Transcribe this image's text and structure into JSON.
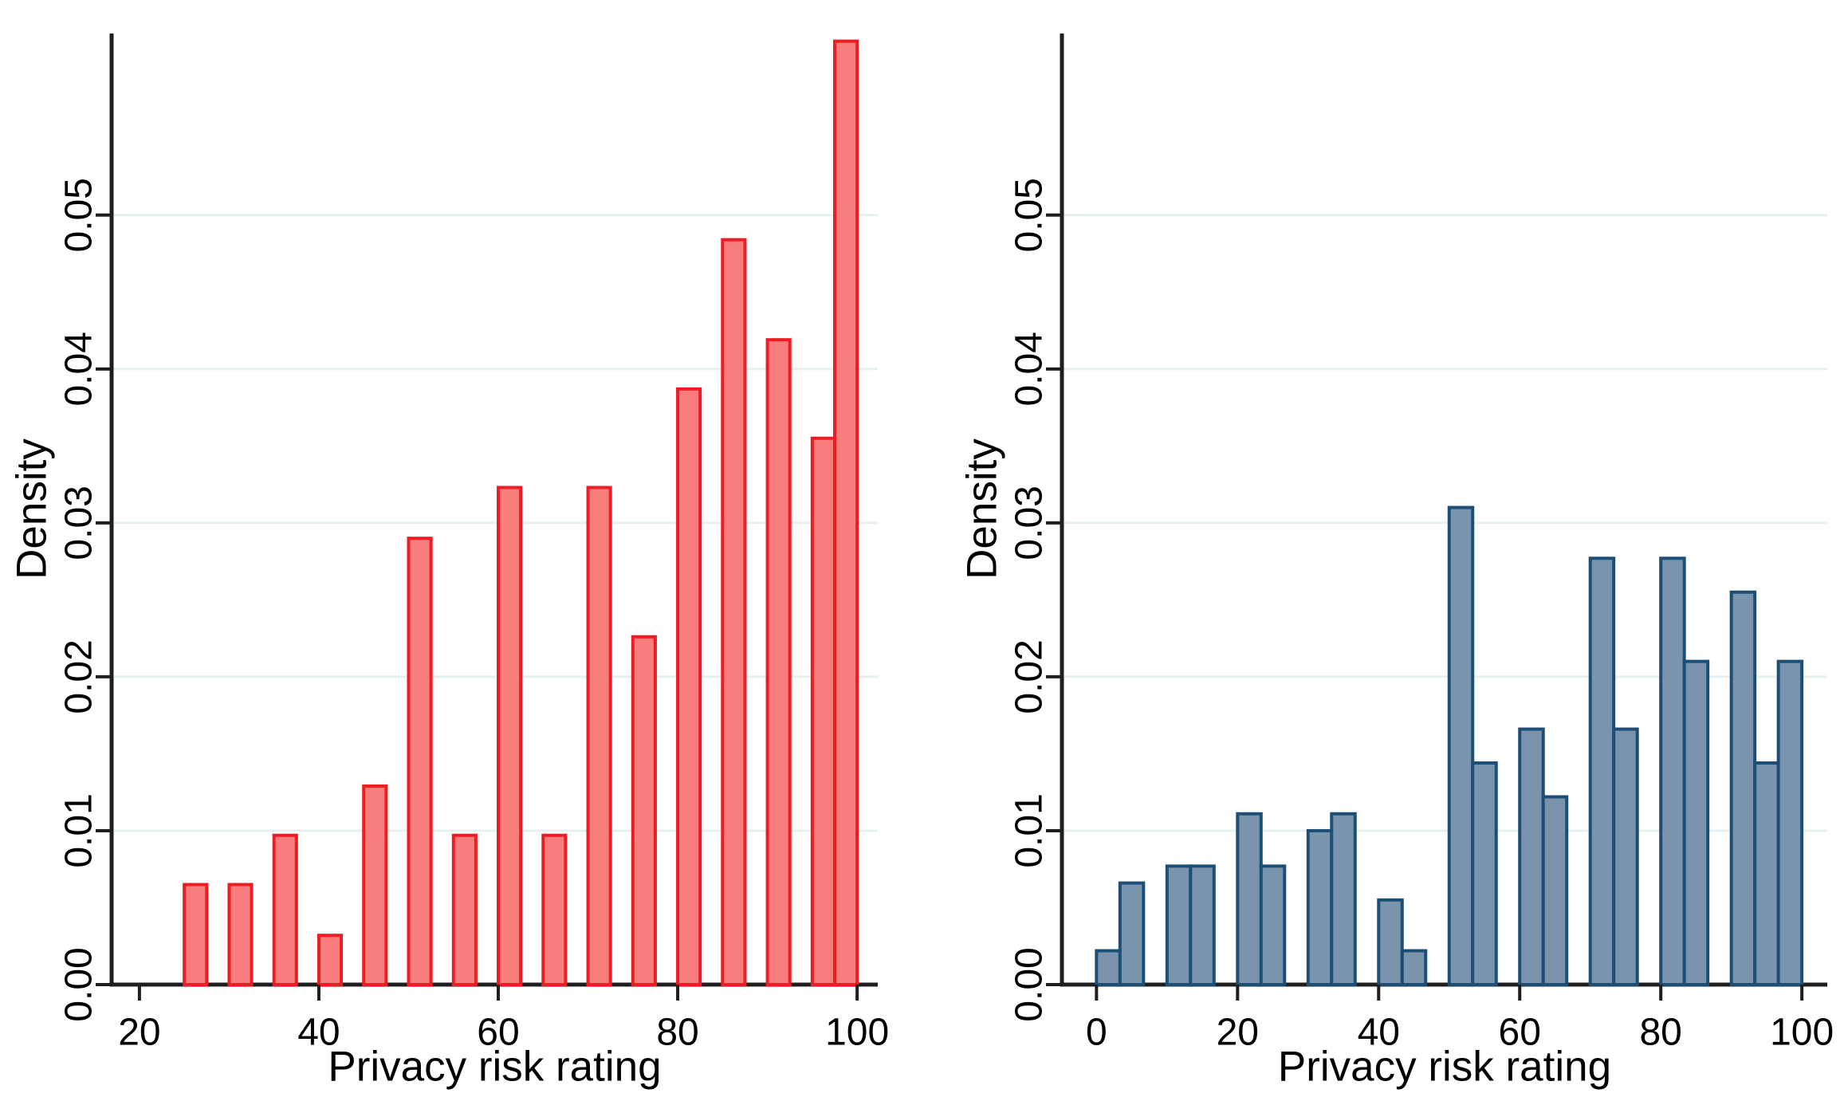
{
  "figure": {
    "background": "#ffffff",
    "description": "Two-panel histogram figure of privacy risk ratings"
  },
  "style": {
    "grid_color": "#e7f0f0",
    "axis_color": "#1e1e1e",
    "text_color": "#000000",
    "tick_font_size": 48,
    "title_font_size": 53
  },
  "chart_data": [
    {
      "type": "bar",
      "name": "red-histogram",
      "xlabel": "Privacy risk rating",
      "ylabel": "Density",
      "legend": "none",
      "grid": "horizontal",
      "bar_fill": "#f87d7d",
      "bar_stroke": "#ee1c23",
      "xlim": [
        16.9,
        102.3
      ],
      "ylim": [
        0,
        0.0618
      ],
      "bin_width": 2.5,
      "x_ticks": [
        {
          "v": 20,
          "label": "20"
        },
        {
          "v": 40,
          "label": "40"
        },
        {
          "v": 60,
          "label": "60"
        },
        {
          "v": 80,
          "label": "80"
        },
        {
          "v": 100,
          "label": "100"
        }
      ],
      "y_ticks": [
        {
          "v": 0.0,
          "label": "0.00"
        },
        {
          "v": 0.01,
          "label": "0.01"
        },
        {
          "v": 0.02,
          "label": "0.02"
        },
        {
          "v": 0.03,
          "label": "0.03"
        },
        {
          "v": 0.04,
          "label": "0.04"
        },
        {
          "v": 0.05,
          "label": "0.05"
        }
      ],
      "grid_values": [
        0.01,
        0.02,
        0.03,
        0.04,
        0.05
      ],
      "bars": [
        {
          "x0": 25,
          "density": 0.0065
        },
        {
          "x0": 30,
          "density": 0.0065
        },
        {
          "x0": 35,
          "density": 0.0097
        },
        {
          "x0": 40,
          "density": 0.0032
        },
        {
          "x0": 45,
          "density": 0.0129
        },
        {
          "x0": 50,
          "density": 0.029
        },
        {
          "x0": 55,
          "density": 0.0097
        },
        {
          "x0": 60,
          "density": 0.0323
        },
        {
          "x0": 65,
          "density": 0.0097
        },
        {
          "x0": 70,
          "density": 0.0323
        },
        {
          "x0": 75,
          "density": 0.0226
        },
        {
          "x0": 80,
          "density": 0.0387
        },
        {
          "x0": 85,
          "density": 0.0484
        },
        {
          "x0": 90,
          "density": 0.0419
        },
        {
          "x0": 95,
          "density": 0.0355
        },
        {
          "x0": 97.5,
          "density": 0.0613
        }
      ]
    },
    {
      "type": "bar",
      "name": "blue-histogram",
      "xlabel": "Privacy risk rating",
      "ylabel": "Density",
      "legend": "none",
      "grid": "horizontal",
      "bar_fill": "#7b94ad",
      "bar_stroke": "#1d4e75",
      "xlim": [
        -4.9,
        103.6
      ],
      "ylim": [
        0,
        0.0618
      ],
      "bin_width": 3.3333,
      "x_ticks": [
        {
          "v": 0,
          "label": "0"
        },
        {
          "v": 20,
          "label": "20"
        },
        {
          "v": 40,
          "label": "40"
        },
        {
          "v": 60,
          "label": "60"
        },
        {
          "v": 80,
          "label": "80"
        },
        {
          "v": 100,
          "label": "100"
        }
      ],
      "y_ticks": [
        {
          "v": 0.0,
          "label": "0.00"
        },
        {
          "v": 0.01,
          "label": "0.01"
        },
        {
          "v": 0.02,
          "label": "0.02"
        },
        {
          "v": 0.03,
          "label": "0.03"
        },
        {
          "v": 0.04,
          "label": "0.04"
        },
        {
          "v": 0.05,
          "label": "0.05"
        }
      ],
      "grid_values": [
        0.01,
        0.02,
        0.03,
        0.04,
        0.05
      ],
      "bars": [
        {
          "x0": 0,
          "density": 0.0022
        },
        {
          "x0": 3.3333,
          "density": 0.0066
        },
        {
          "x0": 10,
          "density": 0.0077
        },
        {
          "x0": 13.3333,
          "density": 0.0077
        },
        {
          "x0": 20,
          "density": 0.0111
        },
        {
          "x0": 23.3333,
          "density": 0.0077
        },
        {
          "x0": 30,
          "density": 0.01
        },
        {
          "x0": 33.3333,
          "density": 0.0111
        },
        {
          "x0": 40,
          "density": 0.0055
        },
        {
          "x0": 43.3333,
          "density": 0.0022
        },
        {
          "x0": 50,
          "density": 0.031
        },
        {
          "x0": 53.3333,
          "density": 0.0144
        },
        {
          "x0": 60,
          "density": 0.0166
        },
        {
          "x0": 63.3333,
          "density": 0.0122
        },
        {
          "x0": 70,
          "density": 0.0277
        },
        {
          "x0": 73.3333,
          "density": 0.0166
        },
        {
          "x0": 80,
          "density": 0.0277
        },
        {
          "x0": 83.3333,
          "density": 0.021
        },
        {
          "x0": 90,
          "density": 0.0255
        },
        {
          "x0": 93.3333,
          "density": 0.0144
        },
        {
          "x0": 96.6667,
          "density": 0.021
        }
      ]
    }
  ]
}
